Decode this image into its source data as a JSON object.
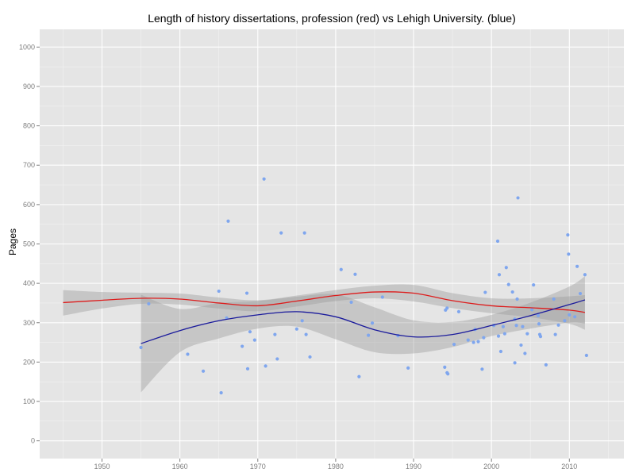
{
  "chart_data": {
    "type": "scatter",
    "title": "Length of history dissertations, profession (red) vs Lehigh University. (blue)",
    "xlabel": "",
    "ylabel": "Pages",
    "xlim": [
      1942,
      2017
    ],
    "ylim": [
      -45,
      1045
    ],
    "x_ticks": [
      1950,
      1960,
      1970,
      1980,
      1990,
      2000,
      2010
    ],
    "y_ticks": [
      0,
      100,
      200,
      300,
      400,
      500,
      600,
      700,
      800,
      900,
      1000
    ],
    "grid": true,
    "colors": {
      "panel": "#e5e5e5",
      "grid_major": "#ffffff",
      "grid_minor": "#f2f2f2",
      "points": "#7fa6ee",
      "profession_line": "#dd1c1c",
      "lehigh_line": "#1a1a9c",
      "confidence_band": "#999999"
    },
    "points": [
      [
        1955,
        237
      ],
      [
        1956,
        348
      ],
      [
        1961,
        220
      ],
      [
        1963,
        177
      ],
      [
        1965,
        380
      ],
      [
        1965.3,
        122
      ],
      [
        1966,
        312
      ],
      [
        1966.2,
        558
      ],
      [
        1968,
        240
      ],
      [
        1968.6,
        375
      ],
      [
        1968.7,
        183
      ],
      [
        1969,
        277
      ],
      [
        1969.6,
        256
      ],
      [
        1970.8,
        665
      ],
      [
        1971,
        190
      ],
      [
        1972.2,
        270
      ],
      [
        1972.5,
        208
      ],
      [
        1973,
        528
      ],
      [
        1975,
        284
      ],
      [
        1975.7,
        305
      ],
      [
        1976,
        528
      ],
      [
        1976.2,
        270
      ],
      [
        1976.7,
        213
      ],
      [
        1980.7,
        435
      ],
      [
        1982,
        352
      ],
      [
        1982.5,
        423
      ],
      [
        1983,
        163
      ],
      [
        1984.2,
        268
      ],
      [
        1984.7,
        299
      ],
      [
        1986,
        365
      ],
      [
        1988,
        267
      ],
      [
        1989.3,
        185
      ],
      [
        1994,
        187
      ],
      [
        1994.1,
        332
      ],
      [
        1994.3,
        337
      ],
      [
        1994.3,
        173
      ],
      [
        1994.4,
        170
      ],
      [
        1995.2,
        245
      ],
      [
        1995.8,
        328
      ],
      [
        1997,
        256
      ],
      [
        1997.7,
        250
      ],
      [
        1997.9,
        283
      ],
      [
        1998.3,
        252
      ],
      [
        1998.8,
        182
      ],
      [
        1999,
        262
      ],
      [
        1999.2,
        377
      ],
      [
        2000.3,
        293
      ],
      [
        2000.8,
        507
      ],
      [
        2000.9,
        266
      ],
      [
        2001,
        422
      ],
      [
        2001.2,
        227
      ],
      [
        2001.5,
        290
      ],
      [
        2001.7,
        272
      ],
      [
        2001.9,
        440
      ],
      [
        2002.2,
        397
      ],
      [
        2002.7,
        378
      ],
      [
        2003,
        309
      ],
      [
        2003,
        198
      ],
      [
        2003.2,
        293
      ],
      [
        2003.3,
        360
      ],
      [
        2003.4,
        617
      ],
      [
        2003.8,
        243
      ],
      [
        2004,
        290
      ],
      [
        2004.3,
        222
      ],
      [
        2004.6,
        272
      ],
      [
        2005.2,
        333
      ],
      [
        2005.4,
        396
      ],
      [
        2006,
        318
      ],
      [
        2006.1,
        297
      ],
      [
        2006.2,
        270
      ],
      [
        2006.3,
        265
      ],
      [
        2007,
        193
      ],
      [
        2008,
        360
      ],
      [
        2008.2,
        270
      ],
      [
        2008.6,
        294
      ],
      [
        2009.4,
        305
      ],
      [
        2009.8,
        523
      ],
      [
        2009.9,
        474
      ],
      [
        2010,
        320
      ],
      [
        2010.7,
        315
      ],
      [
        2011,
        443
      ],
      [
        2011.4,
        374
      ],
      [
        2012,
        422
      ],
      [
        2012.2,
        217
      ]
    ],
    "series": [
      {
        "color": "#dd1c1c",
        "x": [
          1945,
          1950,
          1955,
          1960,
          1965,
          1970,
          1975,
          1980,
          1985,
          1990,
          1995,
          2000,
          2005,
          2010,
          2012
        ],
        "y": [
          351,
          357,
          362,
          360,
          350,
          343,
          355,
          369,
          378,
          375,
          356,
          343,
          338,
          332,
          326
        ],
        "band_lower": [
          318,
          336,
          348,
          346,
          336,
          329,
          341,
          355,
          362,
          354,
          337,
          324,
          314,
          297,
          282
        ],
        "band_upper": [
          383,
          378,
          376,
          374,
          364,
          357,
          369,
          383,
          394,
          396,
          375,
          362,
          362,
          367,
          370
        ]
      },
      {
        "color": "#1a1a9c",
        "x": [
          1955,
          1960,
          1965,
          1970,
          1975,
          1980,
          1985,
          1990,
          1995,
          2000,
          2005,
          2010,
          2012
        ],
        "y": [
          247,
          280,
          305,
          320,
          328,
          315,
          282,
          264,
          270,
          293,
          318,
          346,
          358
        ],
        "band_lower": [
          123,
          225,
          260,
          285,
          290,
          258,
          225,
          222,
          238,
          266,
          285,
          300,
          298
        ],
        "band_upper": [
          371,
          335,
          350,
          355,
          366,
          372,
          339,
          306,
          302,
          320,
          351,
          392,
          418
        ]
      }
    ]
  }
}
